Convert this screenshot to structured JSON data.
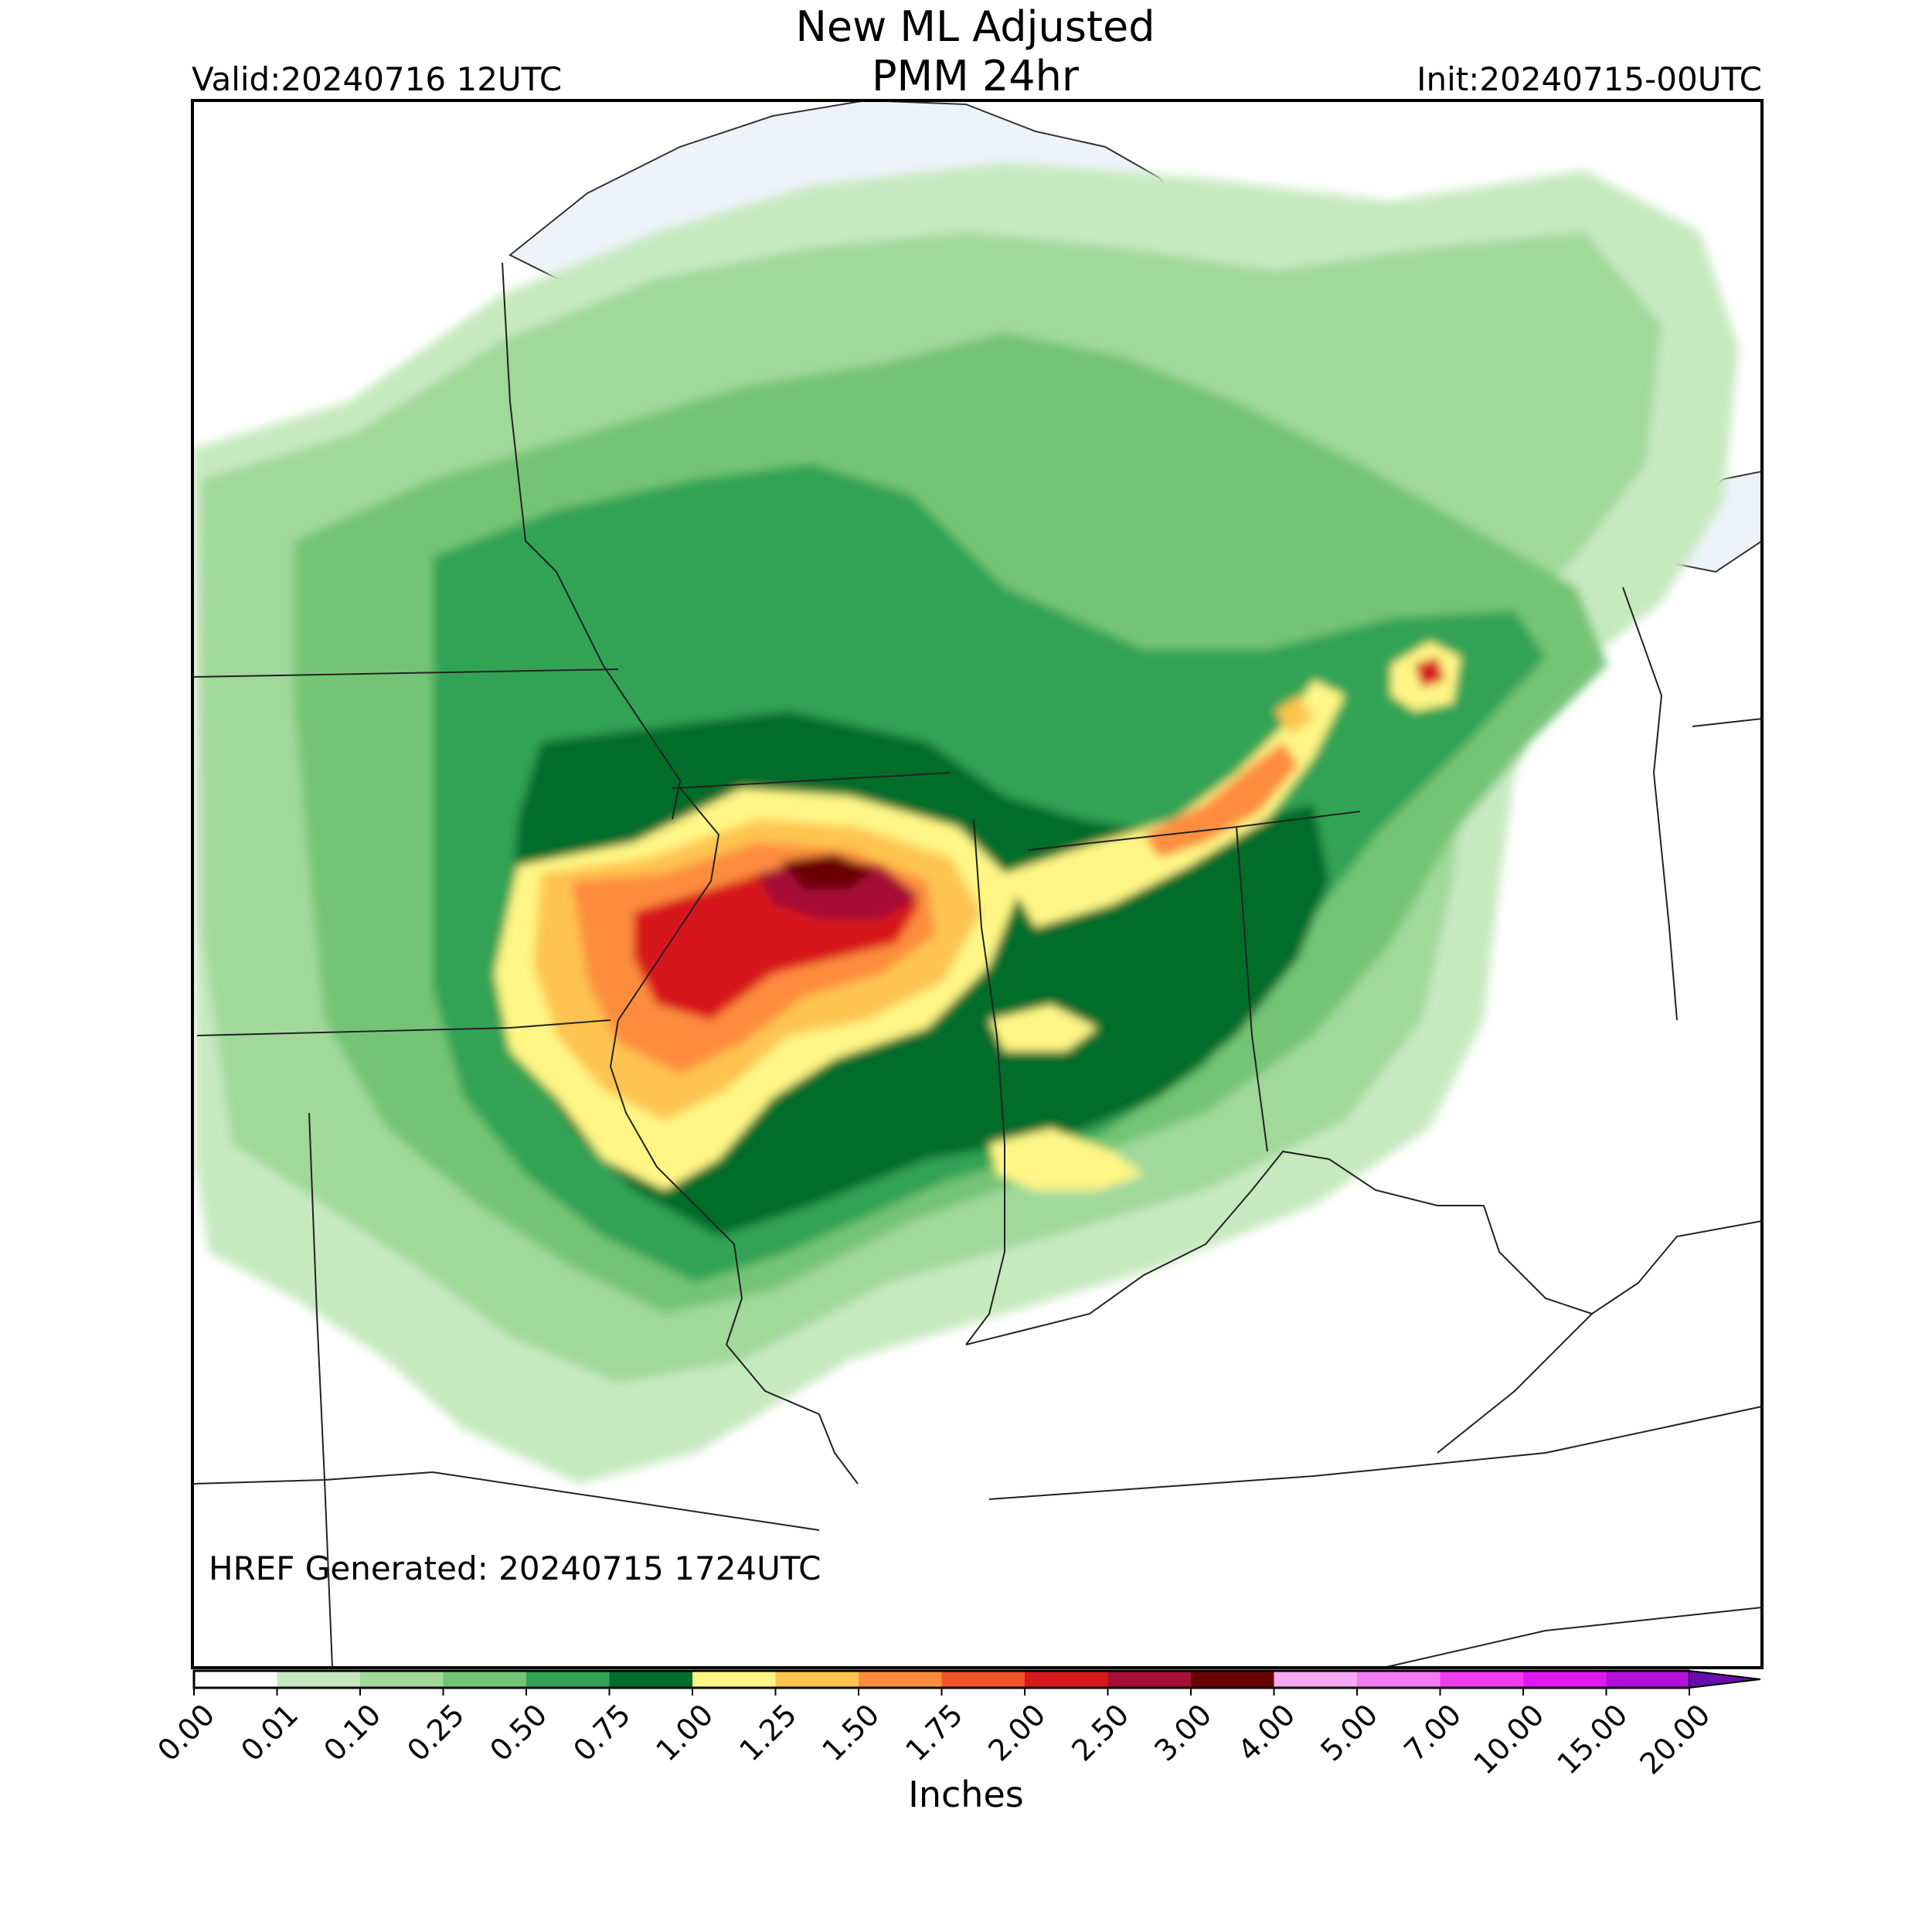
{
  "header": {
    "title_line1": "New ML Adjusted",
    "title_line2": "PMM 24hr",
    "valid": "Valid:20240716 12UTC",
    "init": "Init:20240715-00UTC"
  },
  "footer_note": "HREF Generated: 20240715 1724UTC",
  "colorbar": {
    "units": "Inches",
    "ticks": [
      "0.00",
      "0.01",
      "0.10",
      "0.25",
      "0.50",
      "0.75",
      "1.00",
      "1.25",
      "1.50",
      "1.75",
      "2.00",
      "2.50",
      "3.00",
      "4.00",
      "5.00",
      "7.00",
      "10.00",
      "15.00",
      "20.00"
    ],
    "colors": [
      "#ffffff",
      "#c7e9c0",
      "#a1d99b",
      "#74c476",
      "#31a354",
      "#006d2c",
      "#fff685",
      "#fec44f",
      "#fd8d3c",
      "#f2542d",
      "#d7191c",
      "#a50f36",
      "#6b0000",
      "#f7a8f2",
      "#f47bf0",
      "#f03cf0",
      "#df1af0",
      "#b20fd9"
    ],
    "extend_color": "#6a0dad"
  },
  "map_colors": {
    "lake": "#eef3fa",
    "border": "#222222"
  }
}
